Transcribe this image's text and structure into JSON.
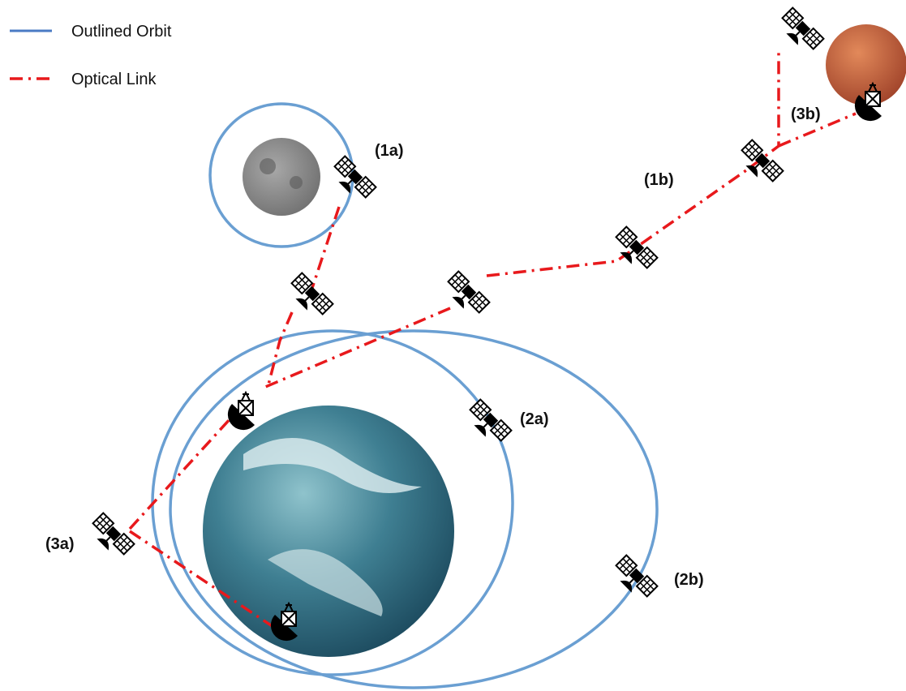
{
  "legend": [
    {
      "label": "Outlined Orbit"
    },
    {
      "label": "Optical Link"
    }
  ],
  "labels": [
    "(1a)",
    "(1b)",
    "(2a)",
    "(2b)",
    "(3a)",
    "(3b)"
  ]
}
